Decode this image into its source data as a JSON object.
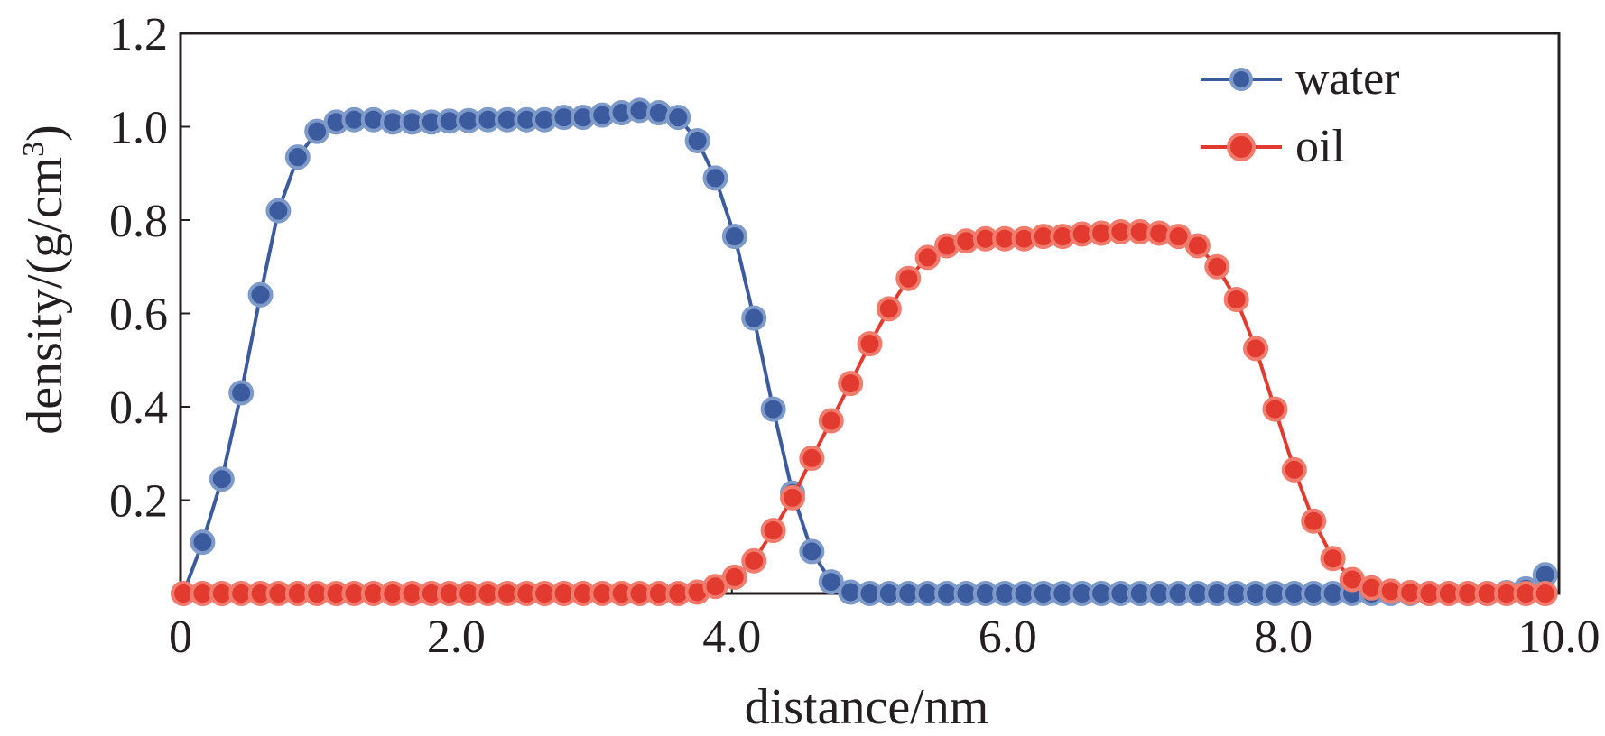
{
  "chart_data": {
    "type": "line",
    "title": "",
    "xlabel": "distance/nm",
    "ylabel_text": "density/(g/cm",
    "ylabel_sup": "3",
    "ylabel_close": ")",
    "xlim": [
      0,
      10
    ],
    "ylim": [
      0,
      1.2
    ],
    "x_ticks": [
      {
        "value": 0,
        "label": "0"
      },
      {
        "value": 2,
        "label": "2.0"
      },
      {
        "value": 4,
        "label": "4.0"
      },
      {
        "value": 6,
        "label": "6.0"
      },
      {
        "value": 8,
        "label": "8.0"
      },
      {
        "value": 10,
        "label": "10.0"
      }
    ],
    "y_ticks": [
      {
        "value": 0.2,
        "label": "0.2"
      },
      {
        "value": 0.4,
        "label": "0.4"
      },
      {
        "value": 0.6,
        "label": "0.6"
      },
      {
        "value": 0.8,
        "label": "0.8"
      },
      {
        "value": 1.0,
        "label": "1.0"
      },
      {
        "value": 1.2,
        "label": "1.2"
      }
    ],
    "legend_position": "top-right",
    "series": [
      {
        "name": "water",
        "color": "#3b5b9e",
        "marker_fill": "#3b5b9e",
        "marker_edge": "#7e9ac9",
        "x": [
          0.02,
          0.16,
          0.3,
          0.44,
          0.58,
          0.71,
          0.85,
          0.99,
          1.13,
          1.26,
          1.4,
          1.54,
          1.68,
          1.82,
          1.95,
          2.09,
          2.23,
          2.37,
          2.51,
          2.64,
          2.78,
          2.92,
          3.06,
          3.2,
          3.33,
          3.47,
          3.61,
          3.75,
          3.88,
          4.02,
          4.16,
          4.3,
          4.44,
          4.58,
          4.72,
          4.86,
          5.0,
          5.14,
          5.28,
          5.42,
          5.56,
          5.7,
          5.84,
          5.98,
          6.12,
          6.26,
          6.4,
          6.54,
          6.68,
          6.82,
          6.96,
          7.1,
          7.24,
          7.38,
          7.52,
          7.66,
          7.8,
          7.94,
          8.08,
          8.22,
          8.36,
          8.5,
          8.64,
          8.78,
          8.92,
          9.06,
          9.2,
          9.34,
          9.48,
          9.62,
          9.76,
          9.9
        ],
        "y": [
          0.0,
          0.11,
          0.245,
          0.43,
          0.64,
          0.82,
          0.935,
          0.99,
          1.01,
          1.015,
          1.015,
          1.01,
          1.01,
          1.01,
          1.012,
          1.013,
          1.015,
          1.015,
          1.015,
          1.015,
          1.02,
          1.02,
          1.025,
          1.03,
          1.035,
          1.03,
          1.02,
          0.97,
          0.89,
          0.765,
          0.59,
          0.395,
          0.215,
          0.09,
          0.025,
          0.003,
          0,
          0,
          0,
          0,
          0,
          0,
          0,
          0,
          0,
          0,
          0,
          0,
          0,
          0,
          0,
          0,
          0,
          0,
          0,
          0,
          0,
          0,
          0,
          0,
          0,
          0,
          0,
          0,
          0,
          0,
          0,
          0,
          0,
          0.002,
          0.01,
          0.04
        ]
      },
      {
        "name": "oil",
        "color": "#e23a2e",
        "marker_fill": "#e23a2e",
        "marker_edge": "#f07c6e",
        "x": [
          0.02,
          0.16,
          0.3,
          0.44,
          0.58,
          0.71,
          0.85,
          0.99,
          1.13,
          1.26,
          1.4,
          1.54,
          1.68,
          1.82,
          1.95,
          2.09,
          2.23,
          2.37,
          2.51,
          2.64,
          2.78,
          2.92,
          3.06,
          3.2,
          3.33,
          3.47,
          3.61,
          3.75,
          3.88,
          4.02,
          4.16,
          4.3,
          4.44,
          4.58,
          4.72,
          4.86,
          5.0,
          5.14,
          5.28,
          5.42,
          5.56,
          5.7,
          5.84,
          5.98,
          6.12,
          6.26,
          6.4,
          6.54,
          6.68,
          6.82,
          6.96,
          7.1,
          7.24,
          7.38,
          7.52,
          7.66,
          7.8,
          7.94,
          8.08,
          8.22,
          8.36,
          8.5,
          8.64,
          8.78,
          8.92,
          9.06,
          9.2,
          9.34,
          9.48,
          9.62,
          9.76,
          9.9
        ],
        "y": [
          0,
          0,
          0,
          0,
          0,
          0,
          0,
          0,
          0,
          0,
          0,
          0,
          0,
          0,
          0,
          0,
          0,
          0,
          0,
          0,
          0,
          0,
          0,
          0,
          0,
          0,
          0,
          0.003,
          0.015,
          0.035,
          0.07,
          0.135,
          0.205,
          0.29,
          0.37,
          0.45,
          0.535,
          0.61,
          0.675,
          0.72,
          0.745,
          0.755,
          0.76,
          0.76,
          0.76,
          0.765,
          0.765,
          0.77,
          0.772,
          0.775,
          0.775,
          0.772,
          0.765,
          0.745,
          0.7,
          0.63,
          0.525,
          0.395,
          0.265,
          0.155,
          0.075,
          0.03,
          0.012,
          0.005,
          0.002,
          0,
          0,
          0,
          0,
          0,
          0,
          0
        ]
      }
    ]
  }
}
